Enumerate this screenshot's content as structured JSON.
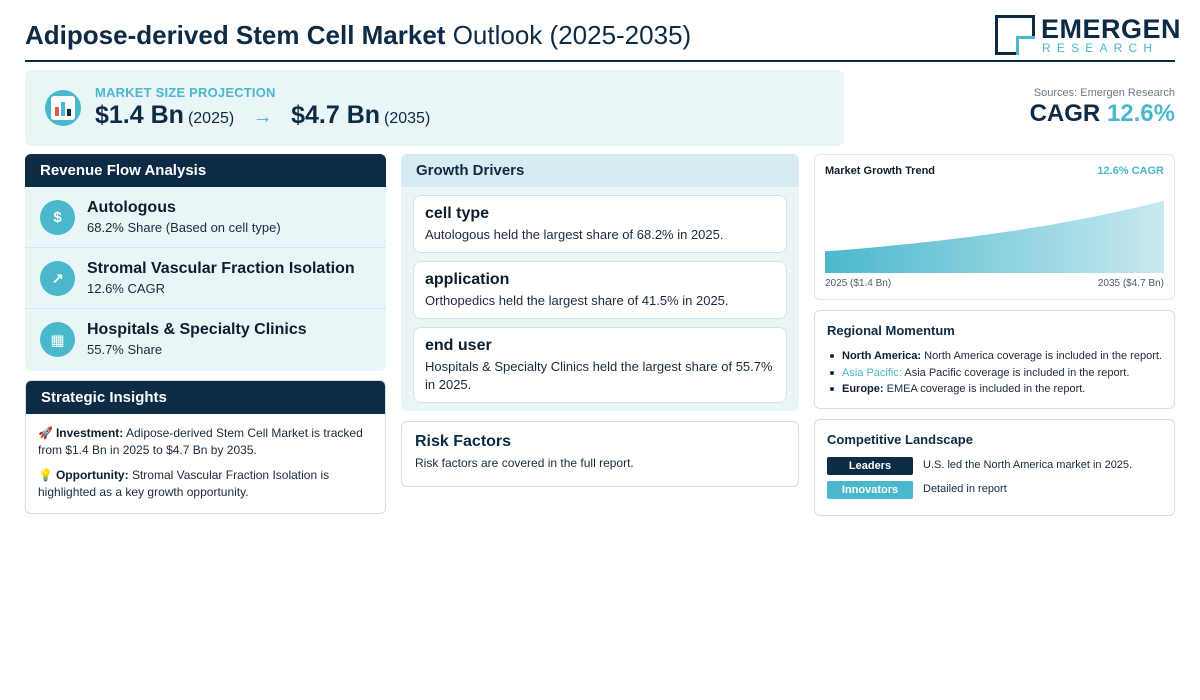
{
  "header": {
    "title_bold": "Adipose-derived Stem Cell Market",
    "title_rest": "Outlook (2025-2035)",
    "logo_name": "EMERGEN",
    "logo_sub": "RESEARCH"
  },
  "projection": {
    "label": "MARKET SIZE PROJECTION",
    "start_value": "$1.4 Bn",
    "start_year": "(2025)",
    "arrow": "→",
    "end_value": "$4.7 Bn",
    "end_year": "(2035)",
    "icon": "chart-icon"
  },
  "summary": {
    "sources": "Sources: Emergen Research",
    "cagr_label": "CAGR",
    "cagr_value": "12.6%"
  },
  "revenue_flow": {
    "title": "Revenue Flow Analysis",
    "items": [
      {
        "icon": "money-bag-icon",
        "glyph": "$",
        "title": "Autologous",
        "sub": "68.2% Share (Based on cell type)"
      },
      {
        "icon": "trend-up-icon",
        "glyph": "↗",
        "title": "Stromal Vascular Fraction Isolation",
        "sub": "12.6% CAGR"
      },
      {
        "icon": "hospital-icon",
        "glyph": "▦",
        "title": "Hospitals & Specialty Clinics",
        "sub": "55.7% Share"
      }
    ]
  },
  "strategic_insights": {
    "title": "Strategic Insights",
    "investment_glyph": "🚀",
    "investment_label": "Investment:",
    "investment_text": "Adipose-derived Stem Cell Market is tracked from $1.4 Bn in 2025 to $4.7 Bn by 2035.",
    "opportunity_glyph": "💡",
    "opportunity_label": "Opportunity:",
    "opportunity_text": "Stromal Vascular Fraction Isolation is highlighted as a key growth opportunity."
  },
  "growth_drivers": {
    "title": "Growth Drivers",
    "cards": [
      {
        "title": "cell type",
        "text": "Autologous held the largest share of 68.2% in 2025."
      },
      {
        "title": "application",
        "text": "Orthopedics held the largest share of 41.5% in 2025."
      },
      {
        "title": "end user",
        "text": "Hospitals & Specialty Clinics held the largest share of 55.7% in 2025."
      }
    ]
  },
  "risk_factors": {
    "title": "Risk Factors",
    "text": "Risk factors are covered in the full report."
  },
  "growth_trend": {
    "title": "Market Growth Trend",
    "cagr": "12.6% CAGR",
    "start_label": "2025 ($1.4 Bn)",
    "end_label": "2035 ($4.7 Bn)"
  },
  "chart_data": {
    "type": "area",
    "x": [
      2025,
      2035
    ],
    "values": [
      1.4,
      4.7
    ],
    "title": "Market Growth Trend",
    "xlabel": "",
    "ylabel": "",
    "grid": false,
    "colors": [
      "#4ab8cc"
    ]
  },
  "regional_momentum": {
    "title": "Regional Momentum",
    "items": [
      {
        "name": "North America:",
        "text": "North America coverage is included in the report."
      },
      {
        "name": "Asia Pacific:",
        "text": "Asia Pacific coverage is included in the report."
      },
      {
        "name": "Europe:",
        "text": "EMEA coverage is included in the report."
      }
    ]
  },
  "competitive_landscape": {
    "title": "Competitive Landscape",
    "rows": [
      {
        "badge": "Leaders",
        "text": "U.S. led the North America market in 2025."
      },
      {
        "badge": "Innovators",
        "text": "Detailed in report"
      }
    ]
  },
  "colors": {
    "navy": "#0d2b45",
    "accent": "#4ab8cc",
    "panel_bg": "#eaf5f8"
  }
}
